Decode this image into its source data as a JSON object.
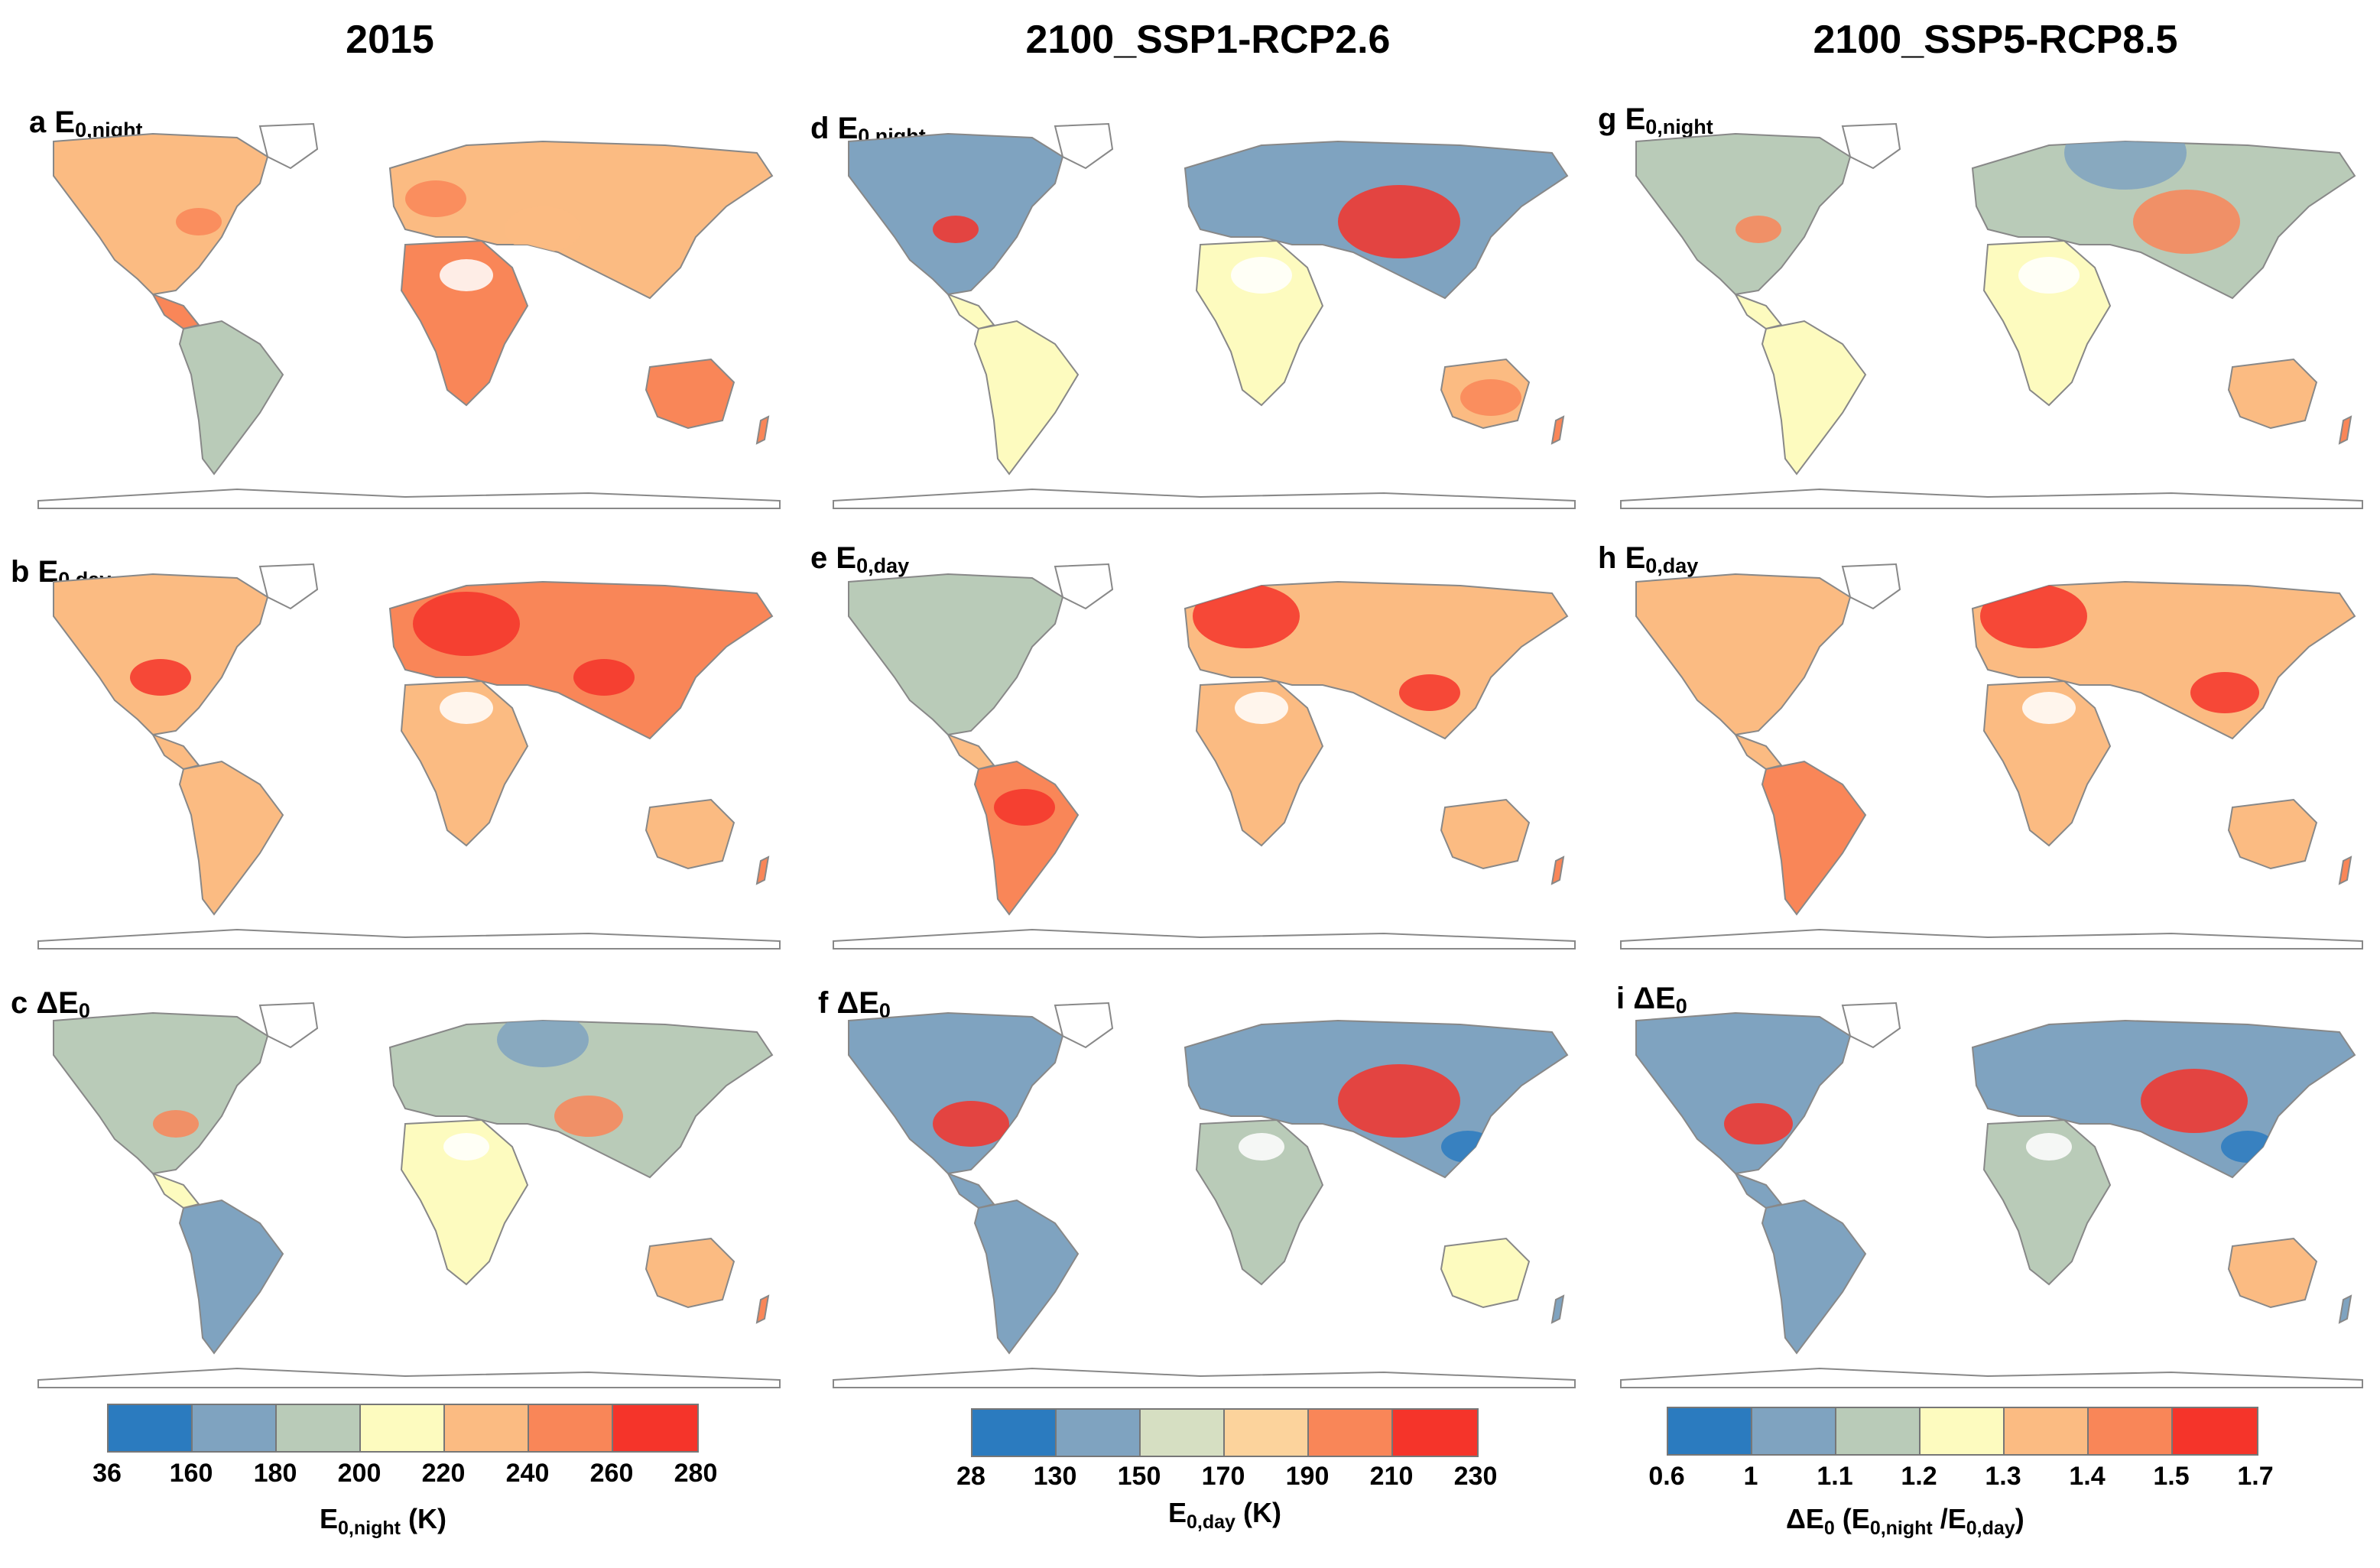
{
  "columns": [
    "2015",
    "2100_SSP1-RCP2.6",
    "2100_SSP5-RCP8.5"
  ],
  "rows": [
    {
      "main": "E",
      "sub": "0,night"
    },
    {
      "main": "E",
      "sub": "0,day"
    },
    {
      "main": "ΔE",
      "sub": "0"
    }
  ],
  "panels": [
    {
      "letter": "a",
      "variable": "E0,night",
      "scenario": "2015"
    },
    {
      "letter": "b",
      "variable": "E0,day",
      "scenario": "2015"
    },
    {
      "letter": "c",
      "variable": "ΔE0",
      "scenario": "2015"
    },
    {
      "letter": "d",
      "variable": "E0,night",
      "scenario": "2100_SSP1-RCP2.6"
    },
    {
      "letter": "e",
      "variable": "E0,day",
      "scenario": "2100_SSP1-RCP2.6"
    },
    {
      "letter": "f",
      "variable": "ΔE0",
      "scenario": "2100_SSP1-RCP2.6"
    },
    {
      "letter": "g",
      "variable": "E0,night",
      "scenario": "2100_SSP5-RCP8.5"
    },
    {
      "letter": "h",
      "variable": "E0,day",
      "scenario": "2100_SSP5-RCP8.5"
    },
    {
      "letter": "i",
      "variable": "ΔE0",
      "scenario": "2100_SSP5-RCP8.5"
    }
  ],
  "colorbars": [
    {
      "name": "night",
      "colors": [
        "#2b7bbf",
        "#7fa3c0",
        "#b9cbb8",
        "#fdfbbf",
        "#fbbb82",
        "#f98658",
        "#f5342a"
      ],
      "ticks": [
        "36",
        "160",
        "180",
        "200",
        "220",
        "240",
        "260",
        "280"
      ],
      "title_main": "E",
      "title_sub": "0,night",
      "title_tail": " (K)"
    },
    {
      "name": "day",
      "colors": [
        "#2b7bbf",
        "#7fa3c0",
        "#d6dfc2",
        "#fcd39c",
        "#f98658",
        "#f5342a"
      ],
      "ticks": [
        "28",
        "130",
        "150",
        "170",
        "190",
        "210",
        "230"
      ],
      "title_main": "E",
      "title_sub": "0,day",
      "title_tail": " (K)"
    },
    {
      "name": "delta",
      "colors": [
        "#2b7bbf",
        "#7fa3c0",
        "#b9cbb8",
        "#fdfbbf",
        "#fbbb82",
        "#f98658",
        "#f5342a"
      ],
      "ticks": [
        "0.6",
        "1",
        "1.1",
        "1.2",
        "1.3",
        "1.4",
        "1.5",
        "1.7"
      ],
      "title_pre": "ΔE",
      "title_pre_sub": "0",
      "title_mid": " (E",
      "title_sub1": "0,night",
      "title_mid2": " /E",
      "title_sub2": "0,day",
      "title_tail": ")"
    }
  ]
}
